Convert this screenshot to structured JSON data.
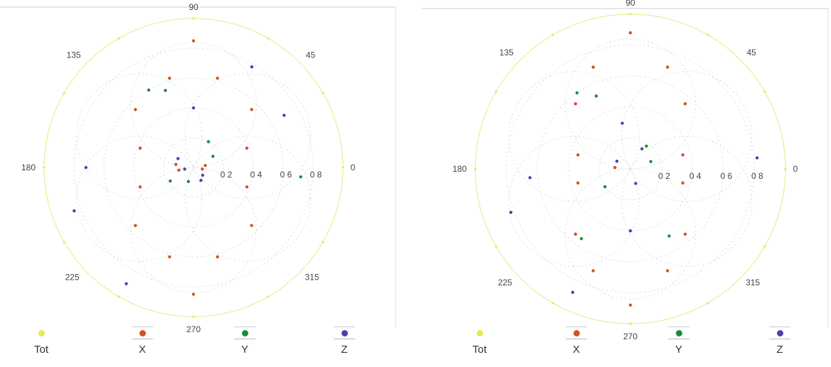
{
  "chart_data": [
    {
      "type": "scatter",
      "subtype": "polar",
      "grid": true,
      "angle_ticks": [
        "0",
        "45",
        "90",
        "135",
        "180",
        "225",
        "270",
        "315"
      ],
      "radial_ticks": [
        "0 2",
        "0 4",
        "0 6",
        "0 8"
      ],
      "rlim": [
        0,
        1
      ],
      "legend": {
        "position": "bottom",
        "items": [
          {
            "label": "Tot",
            "color": "#e8e84a"
          },
          {
            "label": "X",
            "color": "#d2502a"
          },
          {
            "label": "Y",
            "color": "#1f8a3a"
          },
          {
            "label": "Z",
            "color": "#4545a8"
          }
        ]
      },
      "series": [
        {
          "name": "Tot",
          "color": "#e8e84a",
          "points": [
            [
              0,
              1
            ],
            [
              30,
              1
            ],
            [
              60,
              1
            ],
            [
              90,
              1
            ],
            [
              120,
              1
            ],
            [
              150,
              1
            ],
            [
              180,
              1
            ],
            [
              210,
              1
            ],
            [
              240,
              1
            ],
            [
              270,
              1
            ],
            [
              300,
              1
            ],
            [
              330,
              1
            ]
          ]
        },
        {
          "name": "X",
          "color": "#d2502a",
          "points": [
            [
              90,
              0.85
            ],
            [
              75,
              0.62
            ],
            [
              105,
              0.62
            ],
            [
              135,
              0.55
            ],
            [
              160,
              0.38
            ],
            [
              200,
              0.38
            ],
            [
              225,
              0.55
            ],
            [
              255,
              0.62
            ],
            [
              285,
              0.62
            ],
            [
              270,
              0.85
            ],
            [
              315,
              0.55
            ],
            [
              340,
              0.38
            ],
            [
              20,
              0.38
            ],
            [
              45,
              0.55
            ],
            [
              170,
              0.12
            ],
            [
              190,
              0.1
            ],
            [
              10,
              0.08
            ],
            [
              350,
              0.06
            ]
          ]
        },
        {
          "name": "Y",
          "color": "#1f8a3a",
          "points": [
            [
              120,
              0.6
            ],
            [
              110,
              0.55
            ],
            [
              60,
              0.2
            ],
            [
              30,
              0.15
            ],
            [
              250,
              0.1
            ],
            [
              355,
              0.72
            ],
            [
              210,
              0.18
            ]
          ]
        },
        {
          "name": "Z",
          "color": "#4545a8",
          "points": [
            [
              90,
              0.4
            ],
            [
              180,
              0.72
            ],
            [
              200,
              0.85
            ],
            [
              240,
              0.9
            ],
            [
              300,
              0.1
            ],
            [
              320,
              0.08
            ],
            [
              60,
              0.78
            ],
            [
              30,
              0.7
            ],
            [
              150,
              0.12
            ],
            [
              190,
              0.06
            ]
          ]
        }
      ]
    },
    {
      "type": "scatter",
      "subtype": "polar",
      "grid": true,
      "angle_ticks": [
        "0",
        "45",
        "90",
        "135",
        "180",
        "225",
        "270",
        "315"
      ],
      "radial_ticks": [
        "0 2",
        "0 4",
        "0 6",
        "0 8"
      ],
      "rlim": [
        0,
        1
      ],
      "legend": {
        "position": "bottom",
        "items": [
          {
            "label": "Tot",
            "color": "#e8e84a"
          },
          {
            "label": "X",
            "color": "#d2502a"
          },
          {
            "label": "Y",
            "color": "#1f8a3a"
          },
          {
            "label": "Z",
            "color": "#4545a8"
          }
        ]
      },
      "series": [
        {
          "name": "Tot",
          "color": "#e8e84a",
          "points": [
            [
              0,
              1
            ],
            [
              30,
              1
            ],
            [
              60,
              1
            ],
            [
              90,
              1
            ],
            [
              120,
              1
            ],
            [
              150,
              1
            ],
            [
              180,
              1
            ],
            [
              210,
              1
            ],
            [
              240,
              1
            ],
            [
              270,
              1
            ],
            [
              300,
              1
            ],
            [
              330,
              1
            ]
          ]
        },
        {
          "name": "X",
          "color": "#d2502a",
          "points": [
            [
              90,
              0.88
            ],
            [
              70,
              0.7
            ],
            [
              110,
              0.7
            ],
            [
              130,
              0.55
            ],
            [
              165,
              0.35
            ],
            [
              195,
              0.35
            ],
            [
              230,
              0.55
            ],
            [
              250,
              0.7
            ],
            [
              290,
              0.7
            ],
            [
              270,
              0.88
            ],
            [
              310,
              0.55
            ],
            [
              345,
              0.35
            ],
            [
              15,
              0.35
            ],
            [
              50,
              0.55
            ],
            [
              175,
              0.1
            ]
          ]
        },
        {
          "name": "Y",
          "color": "#1f8a3a",
          "points": [
            [
              125,
              0.6
            ],
            [
              115,
              0.52
            ],
            [
              55,
              0.18
            ],
            [
              20,
              0.14
            ],
            [
              215,
              0.2
            ],
            [
              235,
              0.55
            ],
            [
              300,
              0.5
            ]
          ]
        },
        {
          "name": "Z",
          "color": "#4545a8",
          "points": [
            [
              100,
              0.3
            ],
            [
              270,
              0.4
            ],
            [
              5,
              0.82
            ],
            [
              185,
              0.65
            ],
            [
              200,
              0.82
            ],
            [
              245,
              0.88
            ],
            [
              290,
              0.1
            ],
            [
              60,
              0.15
            ],
            [
              150,
              0.1
            ]
          ]
        }
      ]
    }
  ]
}
